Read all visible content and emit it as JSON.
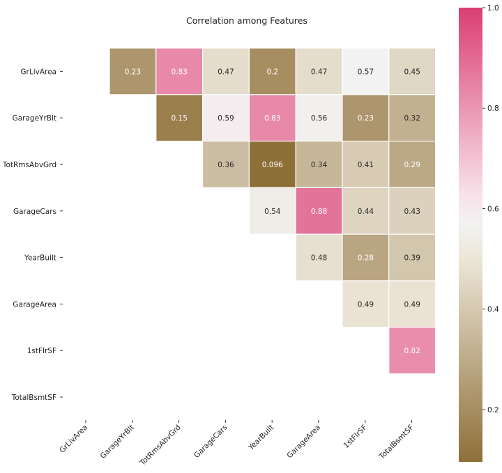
{
  "chart_data": {
    "type": "heatmap",
    "title": "Correlation among Features",
    "xlabel": "",
    "ylabel": "",
    "features": [
      "GrLivArea",
      "GarageYrBlt",
      "TotRmsAbvGrd",
      "GarageCars",
      "YearBuilt",
      "GarageArea",
      "1stFlrSF",
      "TotalBsmtSF"
    ],
    "mask": "lower-triangle-and-diagonal",
    "cells": [
      {
        "row": "GrLivArea",
        "col": "GarageYrBlt",
        "value": 0.23,
        "label": "0.23"
      },
      {
        "row": "GrLivArea",
        "col": "TotRmsAbvGrd",
        "value": 0.83,
        "label": "0.83"
      },
      {
        "row": "GrLivArea",
        "col": "GarageCars",
        "value": 0.47,
        "label": "0.47"
      },
      {
        "row": "GrLivArea",
        "col": "YearBuilt",
        "value": 0.2,
        "label": "0.2"
      },
      {
        "row": "GrLivArea",
        "col": "GarageArea",
        "value": 0.47,
        "label": "0.47"
      },
      {
        "row": "GrLivArea",
        "col": "1stFlrSF",
        "value": 0.57,
        "label": "0.57"
      },
      {
        "row": "GrLivArea",
        "col": "TotalBsmtSF",
        "value": 0.45,
        "label": "0.45"
      },
      {
        "row": "GarageYrBlt",
        "col": "TotRmsAbvGrd",
        "value": 0.15,
        "label": "0.15"
      },
      {
        "row": "GarageYrBlt",
        "col": "GarageCars",
        "value": 0.59,
        "label": "0.59"
      },
      {
        "row": "GarageYrBlt",
        "col": "YearBuilt",
        "value": 0.83,
        "label": "0.83"
      },
      {
        "row": "GarageYrBlt",
        "col": "GarageArea",
        "value": 0.56,
        "label": "0.56"
      },
      {
        "row": "GarageYrBlt",
        "col": "1stFlrSF",
        "value": 0.23,
        "label": "0.23"
      },
      {
        "row": "GarageYrBlt",
        "col": "TotalBsmtSF",
        "value": 0.32,
        "label": "0.32"
      },
      {
        "row": "TotRmsAbvGrd",
        "col": "GarageCars",
        "value": 0.36,
        "label": "0.36"
      },
      {
        "row": "TotRmsAbvGrd",
        "col": "YearBuilt",
        "value": 0.096,
        "label": "0.096"
      },
      {
        "row": "TotRmsAbvGrd",
        "col": "GarageArea",
        "value": 0.34,
        "label": "0.34"
      },
      {
        "row": "TotRmsAbvGrd",
        "col": "1stFlrSF",
        "value": 0.41,
        "label": "0.41"
      },
      {
        "row": "TotRmsAbvGrd",
        "col": "TotalBsmtSF",
        "value": 0.29,
        "label": "0.29"
      },
      {
        "row": "GarageCars",
        "col": "YearBuilt",
        "value": 0.54,
        "label": "0.54"
      },
      {
        "row": "GarageCars",
        "col": "GarageArea",
        "value": 0.88,
        "label": "0.88"
      },
      {
        "row": "GarageCars",
        "col": "1stFlrSF",
        "value": 0.44,
        "label": "0.44"
      },
      {
        "row": "GarageCars",
        "col": "TotalBsmtSF",
        "value": 0.43,
        "label": "0.43"
      },
      {
        "row": "YearBuilt",
        "col": "GarageArea",
        "value": 0.48,
        "label": "0.48"
      },
      {
        "row": "YearBuilt",
        "col": "1stFlrSF",
        "value": 0.28,
        "label": "0.28"
      },
      {
        "row": "YearBuilt",
        "col": "TotalBsmtSF",
        "value": 0.39,
        "label": "0.39"
      },
      {
        "row": "GarageArea",
        "col": "1stFlrSF",
        "value": 0.49,
        "label": "0.49"
      },
      {
        "row": "GarageArea",
        "col": "TotalBsmtSF",
        "value": 0.49,
        "label": "0.49"
      },
      {
        "row": "1stFlrSF",
        "col": "TotalBsmtSF",
        "value": 0.82,
        "label": "0.82"
      }
    ],
    "colorbar": {
      "vmin": 0.096,
      "vmax": 1.0,
      "ticks": [
        0.2,
        0.4,
        0.6,
        0.8,
        1.0
      ],
      "tick_labels": [
        "0.2",
        "0.4",
        "0.6",
        "0.8",
        "1.0"
      ],
      "colormap": "diverging brown-to-pink",
      "stops": [
        {
          "value": 0.096,
          "color": "#8e6f38"
        },
        {
          "value": 0.5,
          "color": "#ece6d8"
        },
        {
          "value": 0.57,
          "color": "#f2f2f2"
        },
        {
          "value": 0.63,
          "color": "#f8e1ea"
        },
        {
          "value": 1.0,
          "color": "#da3e72"
        }
      ]
    },
    "grid": false,
    "legend": "colorbar-right"
  }
}
